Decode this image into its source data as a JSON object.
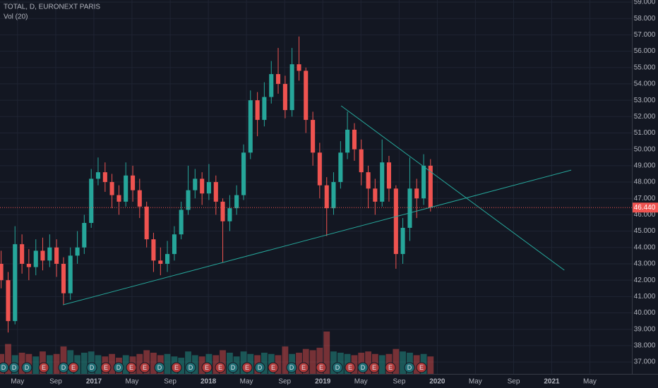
{
  "chart_data": {
    "type": "candlestick",
    "title": "TOTAL, D, EURONEXT PARIS",
    "subtitle": "Vol (20)",
    "up_color": "#26a69a",
    "down_color": "#ef5350",
    "grid": true,
    "xlim": [
      2016.18,
      2021.7
    ],
    "ylim": [
      36.27,
      59.13
    ],
    "y2lim": [
      0,
      30
    ],
    "xticks": [
      {
        "value": 2016.333,
        "label": "May"
      },
      {
        "value": 2016.667,
        "label": "Sep"
      },
      2017,
      {
        "value": 2017.333,
        "label": "May"
      },
      {
        "value": 2017.667,
        "label": "Sep"
      },
      2018,
      {
        "value": 2018.333,
        "label": "May"
      },
      {
        "value": 2018.667,
        "label": "Sep"
      },
      2019,
      {
        "value": 2019.333,
        "label": "May"
      },
      {
        "value": 2019.667,
        "label": "Sep"
      },
      2020,
      {
        "value": 2020.333,
        "label": "May"
      },
      {
        "value": 2020.667,
        "label": "Sep"
      },
      2021,
      {
        "value": 2021.333,
        "label": "May"
      }
    ],
    "yticks": [
      {
        "value": 37,
        "label": "37.000"
      },
      {
        "value": 38,
        "label": "38.000"
      },
      {
        "value": 39,
        "label": "39.000"
      },
      {
        "value": 40,
        "label": "40.000"
      },
      {
        "value": 41,
        "label": "41.000"
      },
      {
        "value": 42,
        "label": "42.000"
      },
      {
        "value": 43,
        "label": "43.000"
      },
      {
        "value": 44,
        "label": "44.000"
      },
      {
        "value": 45,
        "label": "45.000"
      },
      {
        "value": 46,
        "label": "46.000"
      },
      {
        "value": 47,
        "label": "47.000"
      },
      {
        "value": 48,
        "label": "48.000"
      },
      {
        "value": 49,
        "label": "49.000"
      },
      {
        "value": 50,
        "label": "50.000"
      },
      {
        "value": 51,
        "label": "51.000"
      },
      {
        "value": 52,
        "label": "52.000"
      },
      {
        "value": 53,
        "label": "53.000"
      },
      {
        "value": 54,
        "label": "54.000"
      },
      {
        "value": 55,
        "label": "55.000"
      },
      {
        "value": 56,
        "label": "56.000"
      },
      {
        "value": 57,
        "label": "57.000"
      },
      {
        "value": 58,
        "label": "58.000"
      },
      {
        "value": 59,
        "label": "59.000"
      }
    ],
    "x": [
      2016.19,
      2016.251,
      2016.311,
      2016.372,
      2016.432,
      2016.493,
      2016.553,
      2016.614,
      2016.674,
      2016.735,
      2016.795,
      2016.856,
      2016.916,
      2016.977,
      2017.037,
      2017.098,
      2017.158,
      2017.219,
      2017.279,
      2017.34,
      2017.4,
      2017.461,
      2017.521,
      2017.582,
      2017.642,
      2017.703,
      2017.763,
      2017.824,
      2017.884,
      2017.945,
      2018.005,
      2018.066,
      2018.126,
      2018.187,
      2018.247,
      2018.308,
      2018.368,
      2018.429,
      2018.489,
      2018.55,
      2018.61,
      2018.671,
      2018.731,
      2018.792,
      2018.852,
      2018.913,
      2018.973,
      2019.034,
      2019.094,
      2019.155,
      2019.215,
      2019.276,
      2019.336,
      2019.397,
      2019.457,
      2019.518,
      2019.578,
      2019.639,
      2019.699,
      2019.76,
      2019.82,
      2019.881,
      2019.941
    ],
    "open": [
      43.0,
      42.0,
      39.5,
      44.2,
      43.0,
      42.8,
      43.8,
      43.2,
      44.0,
      43.0,
      41.2,
      43.5,
      44.0,
      45.5,
      48.2,
      48.6,
      48.0,
      47.2,
      46.8,
      48.4,
      47.5,
      46.5,
      44.5,
      43.2,
      43.0,
      43.6,
      44.8,
      46.3,
      47.5,
      48.2,
      47.3,
      48.0,
      46.8,
      45.6,
      46.4,
      47.2,
      49.8,
      53.0,
      51.8,
      53.2,
      54.6,
      54.0,
      52.4,
      55.2,
      54.8,
      51.8,
      49.8,
      47.8,
      46.4,
      48.0,
      49.8,
      51.2,
      50.0,
      48.6,
      47.6,
      46.8,
      49.2,
      47.6,
      43.6,
      45.2,
      47.6,
      47.0,
      49.0
    ],
    "high": [
      43.8,
      42.5,
      45.3,
      44.8,
      43.9,
      44.5,
      44.6,
      44.8,
      44.5,
      43.4,
      44.0,
      45.0,
      46.0,
      48.8,
      49.5,
      49.2,
      48.5,
      47.8,
      49.2,
      49.0,
      48.2,
      46.8,
      44.9,
      44.0,
      44.4,
      45.3,
      46.8,
      49.0,
      48.8,
      48.6,
      49.1,
      48.4,
      47.0,
      47.2,
      47.8,
      50.3,
      53.6,
      53.5,
      54.1,
      55.4,
      56.2,
      54.5,
      56.2,
      56.9,
      55.0,
      52.3,
      50.4,
      48.3,
      48.6,
      50.5,
      52.3,
      51.6,
      50.6,
      49.0,
      48.2,
      50.6,
      49.6,
      47.8,
      45.8,
      49.5,
      48.2,
      49.7,
      49.4
    ],
    "low": [
      41.5,
      38.8,
      39.3,
      42.4,
      42.0,
      42.3,
      42.6,
      42.8,
      42.2,
      40.5,
      40.8,
      43.0,
      43.6,
      45.2,
      47.8,
      47.4,
      46.4,
      46.0,
      46.5,
      46.8,
      45.8,
      44.0,
      42.5,
      42.3,
      42.5,
      43.2,
      44.5,
      46.0,
      47.0,
      46.6,
      46.9,
      46.0,
      43.1,
      45.0,
      46.0,
      46.9,
      49.4,
      50.8,
      51.4,
      52.8,
      53.4,
      51.9,
      52.0,
      54.2,
      51.0,
      49.0,
      47.0,
      44.7,
      46.0,
      47.6,
      49.4,
      49.3,
      47.8,
      46.4,
      46.0,
      46.5,
      46.8,
      42.7,
      43.0,
      44.4,
      45.8,
      46.6,
      46.2
    ],
    "close": [
      42.0,
      39.5,
      44.2,
      43.0,
      42.8,
      43.8,
      43.2,
      44.0,
      43.0,
      41.2,
      43.5,
      44.0,
      45.5,
      48.2,
      48.6,
      48.0,
      47.2,
      46.8,
      48.4,
      47.5,
      46.5,
      44.5,
      43.2,
      43.0,
      43.6,
      44.8,
      46.3,
      47.5,
      48.2,
      47.3,
      48.0,
      46.8,
      45.6,
      46.4,
      47.2,
      49.8,
      53.0,
      51.8,
      53.2,
      54.6,
      54.0,
      52.4,
      55.2,
      54.8,
      51.8,
      49.8,
      47.8,
      46.4,
      48.0,
      49.8,
      51.2,
      50.0,
      48.6,
      47.6,
      46.8,
      49.2,
      47.6,
      43.6,
      45.2,
      47.6,
      47.0,
      49.0,
      46.44
    ],
    "volume": [
      1.6,
      2.4,
      1.5,
      1.7,
      1.6,
      1.4,
      1.8,
      1.5,
      1.6,
      2.2,
      1.9,
      1.5,
      1.7,
      1.8,
      1.5,
      1.4,
      1.6,
      1.3,
      1.5,
      1.4,
      1.6,
      1.9,
      1.7,
      1.5,
      1.6,
      1.4,
      1.3,
      1.8,
      1.5,
      1.4,
      1.6,
      1.5,
      1.9,
      1.7,
      1.4,
      1.8,
      1.6,
      1.5,
      1.7,
      1.6,
      1.5,
      2.2,
      1.6,
      1.7,
      2.0,
      1.9,
      2.1,
      3.4,
      1.8,
      1.7,
      1.6,
      1.5,
      1.7,
      1.8,
      1.6,
      1.5,
      1.6,
      2.0,
      1.8,
      1.7,
      1.5,
      1.6,
      1.4
    ],
    "last_price": {
      "value": 46.44,
      "label": "46.440",
      "color": "#ef5350"
    },
    "trendlines": [
      {
        "x": [
          2016.73,
          2021.17
        ],
        "y": [
          40.49,
          48.73
        ],
        "color": "#26a69a"
      },
      {
        "x": [
          2019.16,
          2021.11
        ],
        "y": [
          52.66,
          42.61
        ],
        "color": "#26a69a"
      }
    ],
    "events": [
      "D",
      "D",
      "D",
      "E",
      "D",
      "E",
      "D",
      "E",
      "D",
      "E",
      "E",
      "D",
      "E",
      "D",
      "E",
      "E",
      "D",
      "E",
      "D",
      "E",
      "D",
      "E",
      "E",
      "D",
      "E",
      "D",
      "E",
      "E",
      "D",
      "E"
    ]
  }
}
